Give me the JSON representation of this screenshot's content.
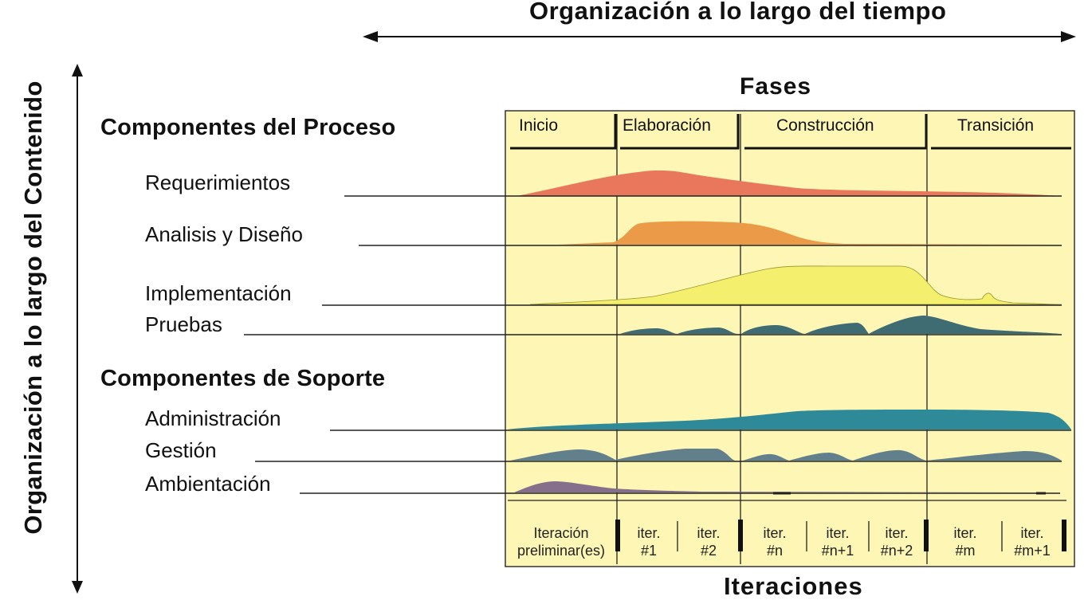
{
  "titles": {
    "time_axis": "Organización a lo largo del tiempo",
    "content_axis": "Organización a lo largo del Contenido",
    "phases_header": "Fases",
    "iterations_header": "Iteraciones"
  },
  "groups": {
    "process": "Componentes del Proceso",
    "support": "Componentes de Soporte"
  },
  "workflows": [
    {
      "label": "Requerimientos",
      "color": "#e8775c"
    },
    {
      "label": "Analisis y Diseño",
      "color": "#eb9a48"
    },
    {
      "label": "Implementación",
      "color": "#f4ef6c"
    },
    {
      "label": "Pruebas",
      "color": "#3f6b72"
    },
    {
      "label": "Administración",
      "color": "#2e8a98"
    },
    {
      "label": "Gestión",
      "color": "#62808c"
    },
    {
      "label": "Ambientación",
      "color": "#84708a"
    }
  ],
  "phases": [
    "Inicio",
    "Elaboración",
    "Construcción",
    "Transición"
  ],
  "iterations": [
    {
      "line1": "Iteración",
      "line2": "preliminar(es)"
    },
    {
      "line1": "iter.",
      "line2": "#1"
    },
    {
      "line1": "iter.",
      "line2": "#2"
    },
    {
      "line1": "iter.",
      "line2": "#n"
    },
    {
      "line1": "iter.",
      "line2": "#n+1"
    },
    {
      "line1": "iter.",
      "line2": "#n+2"
    },
    {
      "line1": "iter.",
      "line2": "#m"
    },
    {
      "line1": "iter.",
      "line2": "#m+1"
    }
  ],
  "colors": {
    "panel_background": "#fdf6b4"
  }
}
